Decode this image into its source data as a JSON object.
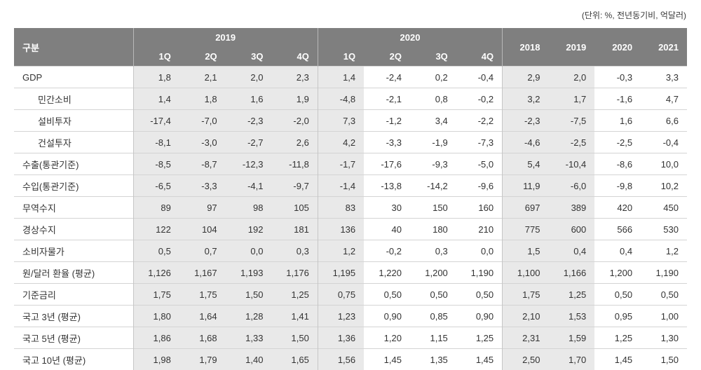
{
  "unit_note": "(단위: %, 전년동기비, 억달러)",
  "table": {
    "corner_label": "구분",
    "groups": [
      {
        "label": "2019"
      },
      {
        "label": "2020"
      }
    ],
    "quarter_labels": [
      "1Q",
      "2Q",
      "3Q",
      "4Q",
      "1Q",
      "2Q",
      "3Q",
      "4Q"
    ],
    "annual_headers": [
      "2018",
      "2019",
      "2020",
      "2021"
    ],
    "rows": [
      {
        "label": "GDP",
        "indent": false,
        "values": [
          "1,8",
          "2,1",
          "2,0",
          "2,3",
          "1,4",
          "-2,4",
          "0,2",
          "-0,4",
          "2,9",
          "2,0",
          "-0,3",
          "3,3"
        ]
      },
      {
        "label": "민간소비",
        "indent": true,
        "values": [
          "1,4",
          "1,8",
          "1,6",
          "1,9",
          "-4,8",
          "-2,1",
          "0,8",
          "-0,2",
          "3,2",
          "1,7",
          "-1,6",
          "4,7"
        ]
      },
      {
        "label": "설비투자",
        "indent": true,
        "values": [
          "-17,4",
          "-7,0",
          "-2,3",
          "-2,0",
          "7,3",
          "-1,2",
          "3,4",
          "-2,2",
          "-2,3",
          "-7,5",
          "1,6",
          "6,6"
        ]
      },
      {
        "label": "건설투자",
        "indent": true,
        "values": [
          "-8,1",
          "-3,0",
          "-2,7",
          "2,6",
          "4,2",
          "-3,3",
          "-1,9",
          "-7,3",
          "-4,6",
          "-2,5",
          "-2,5",
          "-0,4"
        ]
      },
      {
        "label": "수출(통관기준)",
        "indent": false,
        "values": [
          "-8,5",
          "-8,7",
          "-12,3",
          "-11,8",
          "-1,7",
          "-17,6",
          "-9,3",
          "-5,0",
          "5,4",
          "-10,4",
          "-8,6",
          "10,0"
        ]
      },
      {
        "label": "수입(통관기준)",
        "indent": false,
        "values": [
          "-6,5",
          "-3,3",
          "-4,1",
          "-9,7",
          "-1,4",
          "-13,8",
          "-14,2",
          "-9,6",
          "11,9",
          "-6,0",
          "-9,8",
          "10,2"
        ]
      },
      {
        "label": "무역수지",
        "indent": false,
        "values": [
          "89",
          "97",
          "98",
          "105",
          "83",
          "30",
          "150",
          "160",
          "697",
          "389",
          "420",
          "450"
        ]
      },
      {
        "label": "경상수지",
        "indent": false,
        "values": [
          "122",
          "104",
          "192",
          "181",
          "136",
          "40",
          "180",
          "210",
          "775",
          "600",
          "566",
          "530"
        ]
      },
      {
        "label": "소비자물가",
        "indent": false,
        "values": [
          "0,5",
          "0,7",
          "0,0",
          "0,3",
          "1,2",
          "-0,2",
          "0,3",
          "0,0",
          "1,5",
          "0,4",
          "0,4",
          "1,2"
        ]
      },
      {
        "label": "원/달러 환율 (평균)",
        "indent": false,
        "values": [
          "1,126",
          "1,167",
          "1,193",
          "1,176",
          "1,195",
          "1,220",
          "1,200",
          "1,190",
          "1,100",
          "1,166",
          "1,200",
          "1,190"
        ]
      },
      {
        "label": "기준금리",
        "indent": false,
        "values": [
          "1,75",
          "1,75",
          "1,50",
          "1,25",
          "0,75",
          "0,50",
          "0,50",
          "0,50",
          "1,75",
          "1,25",
          "0,50",
          "0,50"
        ]
      },
      {
        "label": "국고 3년 (평균)",
        "indent": false,
        "values": [
          "1,80",
          "1,64",
          "1,28",
          "1,41",
          "1,23",
          "0,90",
          "0,85",
          "0,90",
          "2,10",
          "1,53",
          "0,95",
          "1,00"
        ]
      },
      {
        "label": "국고 5년 (평균)",
        "indent": false,
        "values": [
          "1,86",
          "1,68",
          "1,33",
          "1,50",
          "1,36",
          "1,20",
          "1,15",
          "1,25",
          "2,31",
          "1,59",
          "1,25",
          "1,30"
        ]
      },
      {
        "label": "국고 10년 (평균)",
        "indent": false,
        "values": [
          "1,98",
          "1,79",
          "1,40",
          "1,65",
          "1,56",
          "1,45",
          "1,35",
          "1,45",
          "2,50",
          "1,70",
          "1,45",
          "1,50"
        ]
      }
    ]
  },
  "colors": {
    "header_bg": "#7f7f7f",
    "shaded_band": "#e9e9e9",
    "row_line": "#d4d4d4",
    "bottom_border": "#1c1c1c"
  }
}
